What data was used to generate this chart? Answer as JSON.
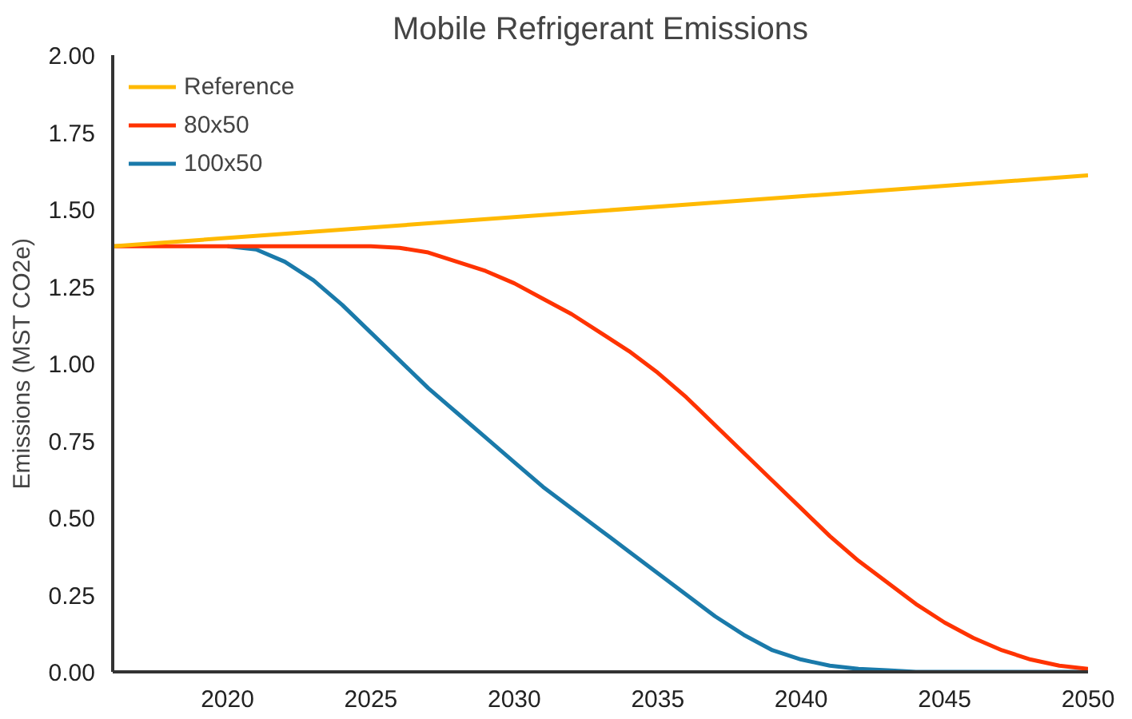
{
  "chart_data": {
    "type": "line",
    "title": "Mobile Refrigerant Emissions",
    "ylabel": "Emissions (MST CO2e)",
    "x": [
      2016,
      2017,
      2018,
      2019,
      2020,
      2021,
      2022,
      2023,
      2024,
      2025,
      2026,
      2027,
      2028,
      2029,
      2030,
      2031,
      2032,
      2033,
      2034,
      2035,
      2036,
      2037,
      2038,
      2039,
      2040,
      2041,
      2042,
      2043,
      2044,
      2045,
      2046,
      2047,
      2048,
      2049,
      2050
    ],
    "series": [
      {
        "name": "Reference",
        "color": "#ffb900",
        "x": [
          2016,
          2050
        ],
        "values": [
          1.38,
          1.61
        ]
      },
      {
        "name": "80x50",
        "color": "#ff3300",
        "values": [
          1.38,
          1.38,
          1.38,
          1.38,
          1.38,
          1.38,
          1.38,
          1.38,
          1.38,
          1.38,
          1.375,
          1.36,
          1.33,
          1.3,
          1.26,
          1.21,
          1.16,
          1.1,
          1.04,
          0.97,
          0.89,
          0.8,
          0.71,
          0.62,
          0.53,
          0.44,
          0.36,
          0.29,
          0.22,
          0.16,
          0.11,
          0.07,
          0.04,
          0.02,
          0.01
        ]
      },
      {
        "name": "100x50",
        "color": "#1a7aaa",
        "values": [
          null,
          null,
          null,
          null,
          1.38,
          1.37,
          1.33,
          1.27,
          1.19,
          1.1,
          1.01,
          0.92,
          0.84,
          0.76,
          0.68,
          0.6,
          0.53,
          0.46,
          0.39,
          0.32,
          0.25,
          0.18,
          0.12,
          0.07,
          0.04,
          0.02,
          0.01,
          0.005,
          0,
          0,
          0,
          0,
          0,
          0,
          0
        ]
      }
    ],
    "xlim": [
      2016,
      2050
    ],
    "xticks": [
      2020,
      2025,
      2030,
      2035,
      2040,
      2045,
      2050
    ],
    "ylim": [
      0,
      2
    ],
    "yticks": [
      {
        "value": 0,
        "label": "0.00"
      },
      {
        "value": 0.25,
        "label": "0.25"
      },
      {
        "value": 0.5,
        "label": "0.50"
      },
      {
        "value": 0.75,
        "label": "0.75"
      },
      {
        "value": 1,
        "label": "1.00"
      },
      {
        "value": 1.25,
        "label": "1.25"
      },
      {
        "value": 1.5,
        "label": "1.50"
      },
      {
        "value": 1.75,
        "label": "1.75"
      },
      {
        "value": 2,
        "label": "2.00"
      }
    ],
    "grid": false,
    "legend": "top left",
    "marker": "none",
    "line_style": "solid"
  }
}
